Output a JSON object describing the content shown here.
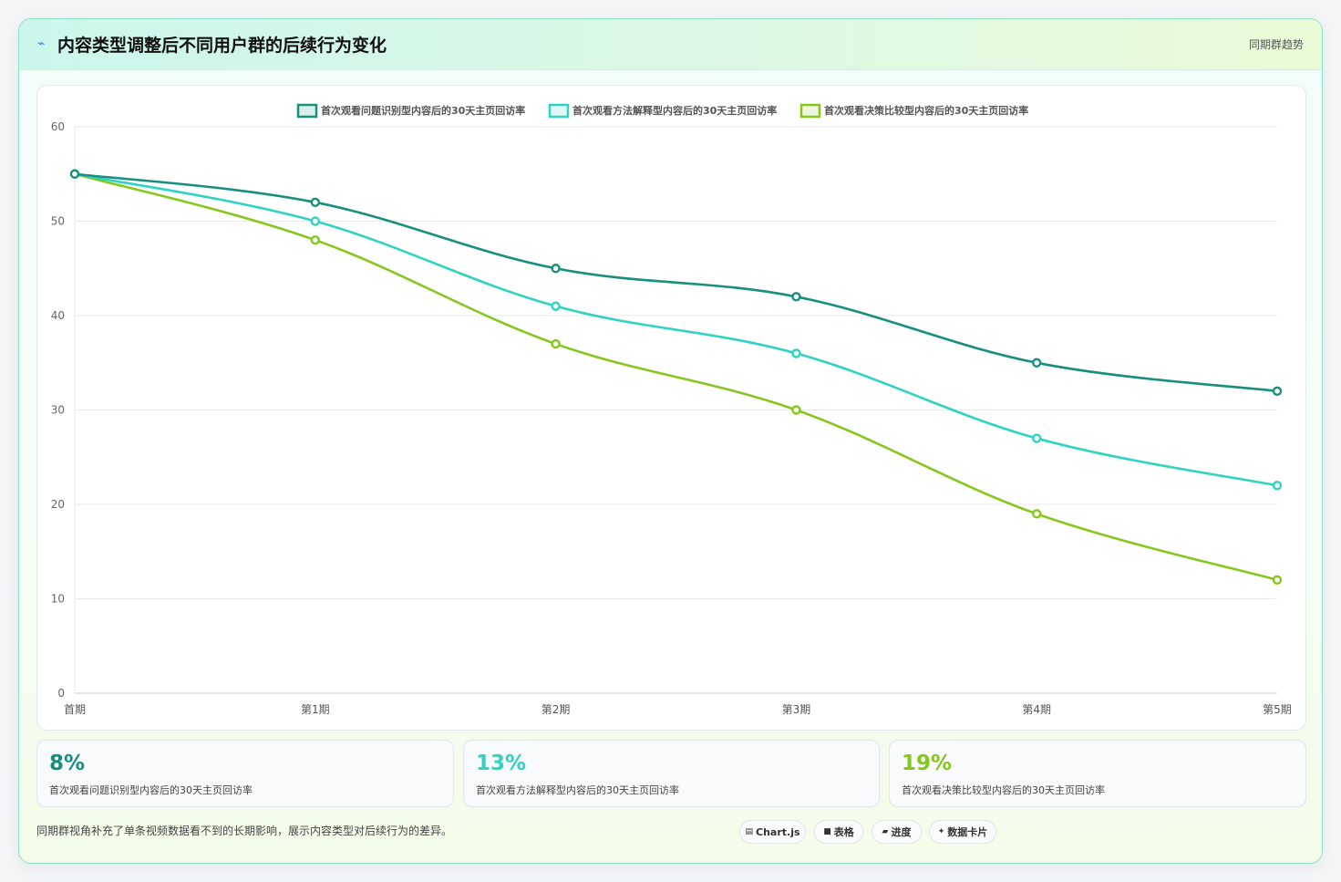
{
  "header": {
    "icon": "trend-icon",
    "title": "内容类型调整后不同用户群的后续行为变化",
    "badge": "同期群趋势"
  },
  "chart_data": {
    "type": "line",
    "categories": [
      "首期",
      "第1期",
      "第2期",
      "第3期",
      "第4期",
      "第5期"
    ],
    "series": [
      {
        "name": "首次观看问题识别型内容后的30天主页回访率",
        "color": "#168f7e",
        "values": [
          55,
          52,
          45,
          42,
          35,
          32
        ]
      },
      {
        "name": "首次观看方法解释型内容后的30天主页回访率",
        "color": "#2ed3c1",
        "values": [
          55,
          50,
          41,
          36,
          27,
          22
        ]
      },
      {
        "name": "首次观看决策比较型内容后的30天主页回访率",
        "color": "#86c71c",
        "values": [
          55,
          48,
          37,
          30,
          19,
          12
        ]
      }
    ],
    "ylim": [
      0,
      60
    ],
    "yticks": [
      0,
      10,
      20,
      30,
      40,
      50,
      60
    ],
    "grid": true,
    "legend": "top-center",
    "smooth": true
  },
  "stats": [
    {
      "value": "8%",
      "label": "首次观看问题识别型内容后的30天主页回访率",
      "color": "#168f7e"
    },
    {
      "value": "13%",
      "label": "首次观看方法解释型内容后的30天主页回访率",
      "color": "#2ed3c1"
    },
    {
      "value": "19%",
      "label": "首次观看决策比较型内容后的30天主页回访率",
      "color": "#86c71c"
    }
  ],
  "footer": {
    "note": "同期群视角补充了单条视频数据看不到的长期影响，展示内容类型对后续行为的差异。",
    "tags": [
      {
        "icon": "chart-icon",
        "glyph": "▤",
        "label": "Chart.js"
      },
      {
        "icon": "table-icon",
        "glyph": "■",
        "label": "表格"
      },
      {
        "icon": "progress-icon",
        "glyph": "▰",
        "label": "进度"
      },
      {
        "icon": "sparkle-icon",
        "glyph": "✦",
        "label": "数据卡片"
      }
    ]
  }
}
